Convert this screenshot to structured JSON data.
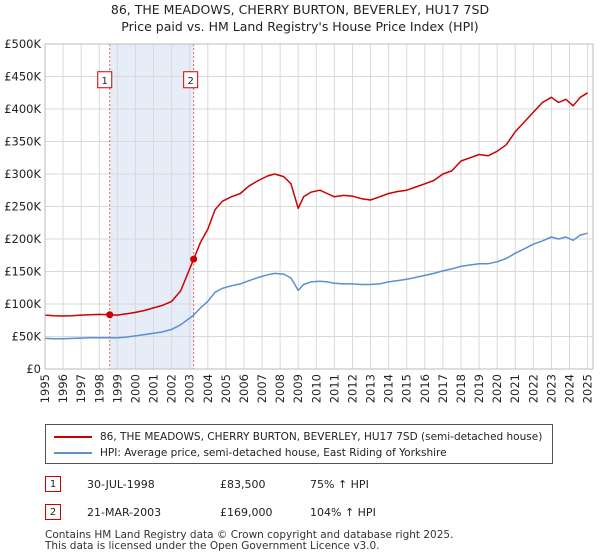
{
  "chart_data": {
    "type": "line",
    "title": "86, THE MEADOWS, CHERRY BURTON, BEVERLEY, HU17 7SD",
    "subtitle": "Price paid vs. HM Land Registry's House Price Index (HPI)",
    "xlabel": "",
    "ylabel": "",
    "xlim": [
      1995,
      2025.3
    ],
    "ylim": [
      0,
      500000
    ],
    "y_ticks": [
      0,
      50000,
      100000,
      150000,
      200000,
      250000,
      300000,
      350000,
      400000,
      450000,
      500000
    ],
    "y_tick_labels": [
      "£0",
      "£50K",
      "£100K",
      "£150K",
      "£200K",
      "£250K",
      "£300K",
      "£350K",
      "£400K",
      "£450K",
      "£500K"
    ],
    "x_ticks": [
      1995,
      1996,
      1997,
      1998,
      1999,
      2000,
      2001,
      2002,
      2003,
      2004,
      2005,
      2006,
      2007,
      2008,
      2009,
      2010,
      2011,
      2012,
      2013,
      2014,
      2015,
      2016,
      2017,
      2018,
      2019,
      2020,
      2021,
      2022,
      2023,
      2024,
      2025
    ],
    "grid": true,
    "shaded_region": [
      1998.58,
      2003.22
    ],
    "series": [
      {
        "name": "86, THE MEADOWS, CHERRY BURTON, BEVERLEY, HU17 7SD (semi-detached house)",
        "color": "#cc0000",
        "x": [
          1995,
          1995.5,
          1996,
          1996.5,
          1997,
          1997.5,
          1998,
          1998.58,
          1999,
          1999.5,
          2000,
          2000.5,
          2001,
          2001.5,
          2002,
          2002.5,
          2003.22,
          2003.6,
          2004,
          2004.4,
          2004.8,
          2005.3,
          2005.8,
          2006.3,
          2006.8,
          2007.3,
          2007.7,
          2008.2,
          2008.6,
          2009.0,
          2009.3,
          2009.7,
          2010.2,
          2010.6,
          2011.0,
          2011.5,
          2012.0,
          2012.5,
          2013.0,
          2013.5,
          2014.0,
          2014.5,
          2015.0,
          2015.5,
          2016.0,
          2016.5,
          2017.0,
          2017.5,
          2018.0,
          2018.5,
          2019.0,
          2019.5,
          2020.0,
          2020.5,
          2021.0,
          2021.5,
          2022.0,
          2022.5,
          2023.0,
          2023.4,
          2023.8,
          2024.2,
          2024.6,
          2025.0
        ],
        "values": [
          83000,
          82000,
          81500,
          82000,
          83000,
          83500,
          84000,
          83500,
          83000,
          85000,
          87000,
          90000,
          94000,
          98000,
          104000,
          120000,
          169000,
          195000,
          215000,
          245000,
          258000,
          265000,
          270000,
          282000,
          290000,
          297000,
          300000,
          296000,
          285000,
          247000,
          265000,
          272000,
          275000,
          270000,
          265000,
          267000,
          266000,
          262000,
          260000,
          265000,
          270000,
          273000,
          275000,
          280000,
          285000,
          290000,
          300000,
          305000,
          320000,
          325000,
          330000,
          328000,
          335000,
          345000,
          365000,
          380000,
          395000,
          410000,
          418000,
          410000,
          415000,
          405000,
          418000,
          425000
        ]
      },
      {
        "name": "HPI: Average price, semi-detached house, East Riding of Yorkshire",
        "color": "#5b8fd0",
        "x": [
          1995,
          1995.5,
          1996,
          1996.5,
          1997,
          1997.5,
          1998,
          1998.58,
          1999,
          1999.5,
          2000,
          2000.5,
          2001,
          2001.5,
          2002,
          2002.5,
          2003.22,
          2003.6,
          2004,
          2004.4,
          2004.8,
          2005.3,
          2005.8,
          2006.3,
          2006.8,
          2007.3,
          2007.7,
          2008.2,
          2008.6,
          2009.0,
          2009.3,
          2009.7,
          2010.2,
          2010.6,
          2011.0,
          2011.5,
          2012.0,
          2012.5,
          2013.0,
          2013.5,
          2014.0,
          2014.5,
          2015.0,
          2015.5,
          2016.0,
          2016.5,
          2017.0,
          2017.5,
          2018.0,
          2018.5,
          2019.0,
          2019.5,
          2020.0,
          2020.5,
          2021.0,
          2021.5,
          2022.0,
          2022.5,
          2023.0,
          2023.4,
          2023.8,
          2024.2,
          2024.6,
          2025.0
        ],
        "values": [
          47000,
          46500,
          46500,
          47000,
          47500,
          48000,
          48000,
          48000,
          48000,
          49000,
          51000,
          53000,
          55000,
          57000,
          61000,
          68000,
          83000,
          94000,
          104000,
          118000,
          124000,
          128000,
          131000,
          136000,
          141000,
          145000,
          147000,
          146000,
          140000,
          121000,
          130000,
          134000,
          135000,
          134000,
          132000,
          131000,
          131000,
          130000,
          130000,
          131000,
          134000,
          136000,
          138000,
          141000,
          144000,
          147000,
          151000,
          154000,
          158000,
          160000,
          162000,
          162000,
          165000,
          170000,
          178000,
          185000,
          192000,
          197000,
          203000,
          200000,
          203000,
          198000,
          206000,
          209000
        ]
      }
    ],
    "markers": [
      {
        "label": "1",
        "x": 1998.58,
        "value": 83500,
        "box_value": 445000
      },
      {
        "label": "2",
        "x": 2003.22,
        "value": 169000,
        "box_value": 445000
      }
    ]
  },
  "legend": {
    "items": [
      {
        "label": "86, THE MEADOWS, CHERRY BURTON, BEVERLEY, HU17 7SD (semi-detached house)",
        "color": "#cc0000"
      },
      {
        "label": "HPI: Average price, semi-detached house, East Riding of Yorkshire",
        "color": "#5b8fd0"
      }
    ]
  },
  "transactions": [
    {
      "num": "1",
      "date": "30-JUL-1998",
      "price": "£83,500",
      "hpi": "75% ↑ HPI"
    },
    {
      "num": "2",
      "date": "21-MAR-2003",
      "price": "£169,000",
      "hpi": "104% ↑ HPI"
    }
  ],
  "footer": {
    "line1": "Contains HM Land Registry data © Crown copyright and database right 2025.",
    "line2": "This data is licensed under the Open Government Licence v3.0."
  }
}
